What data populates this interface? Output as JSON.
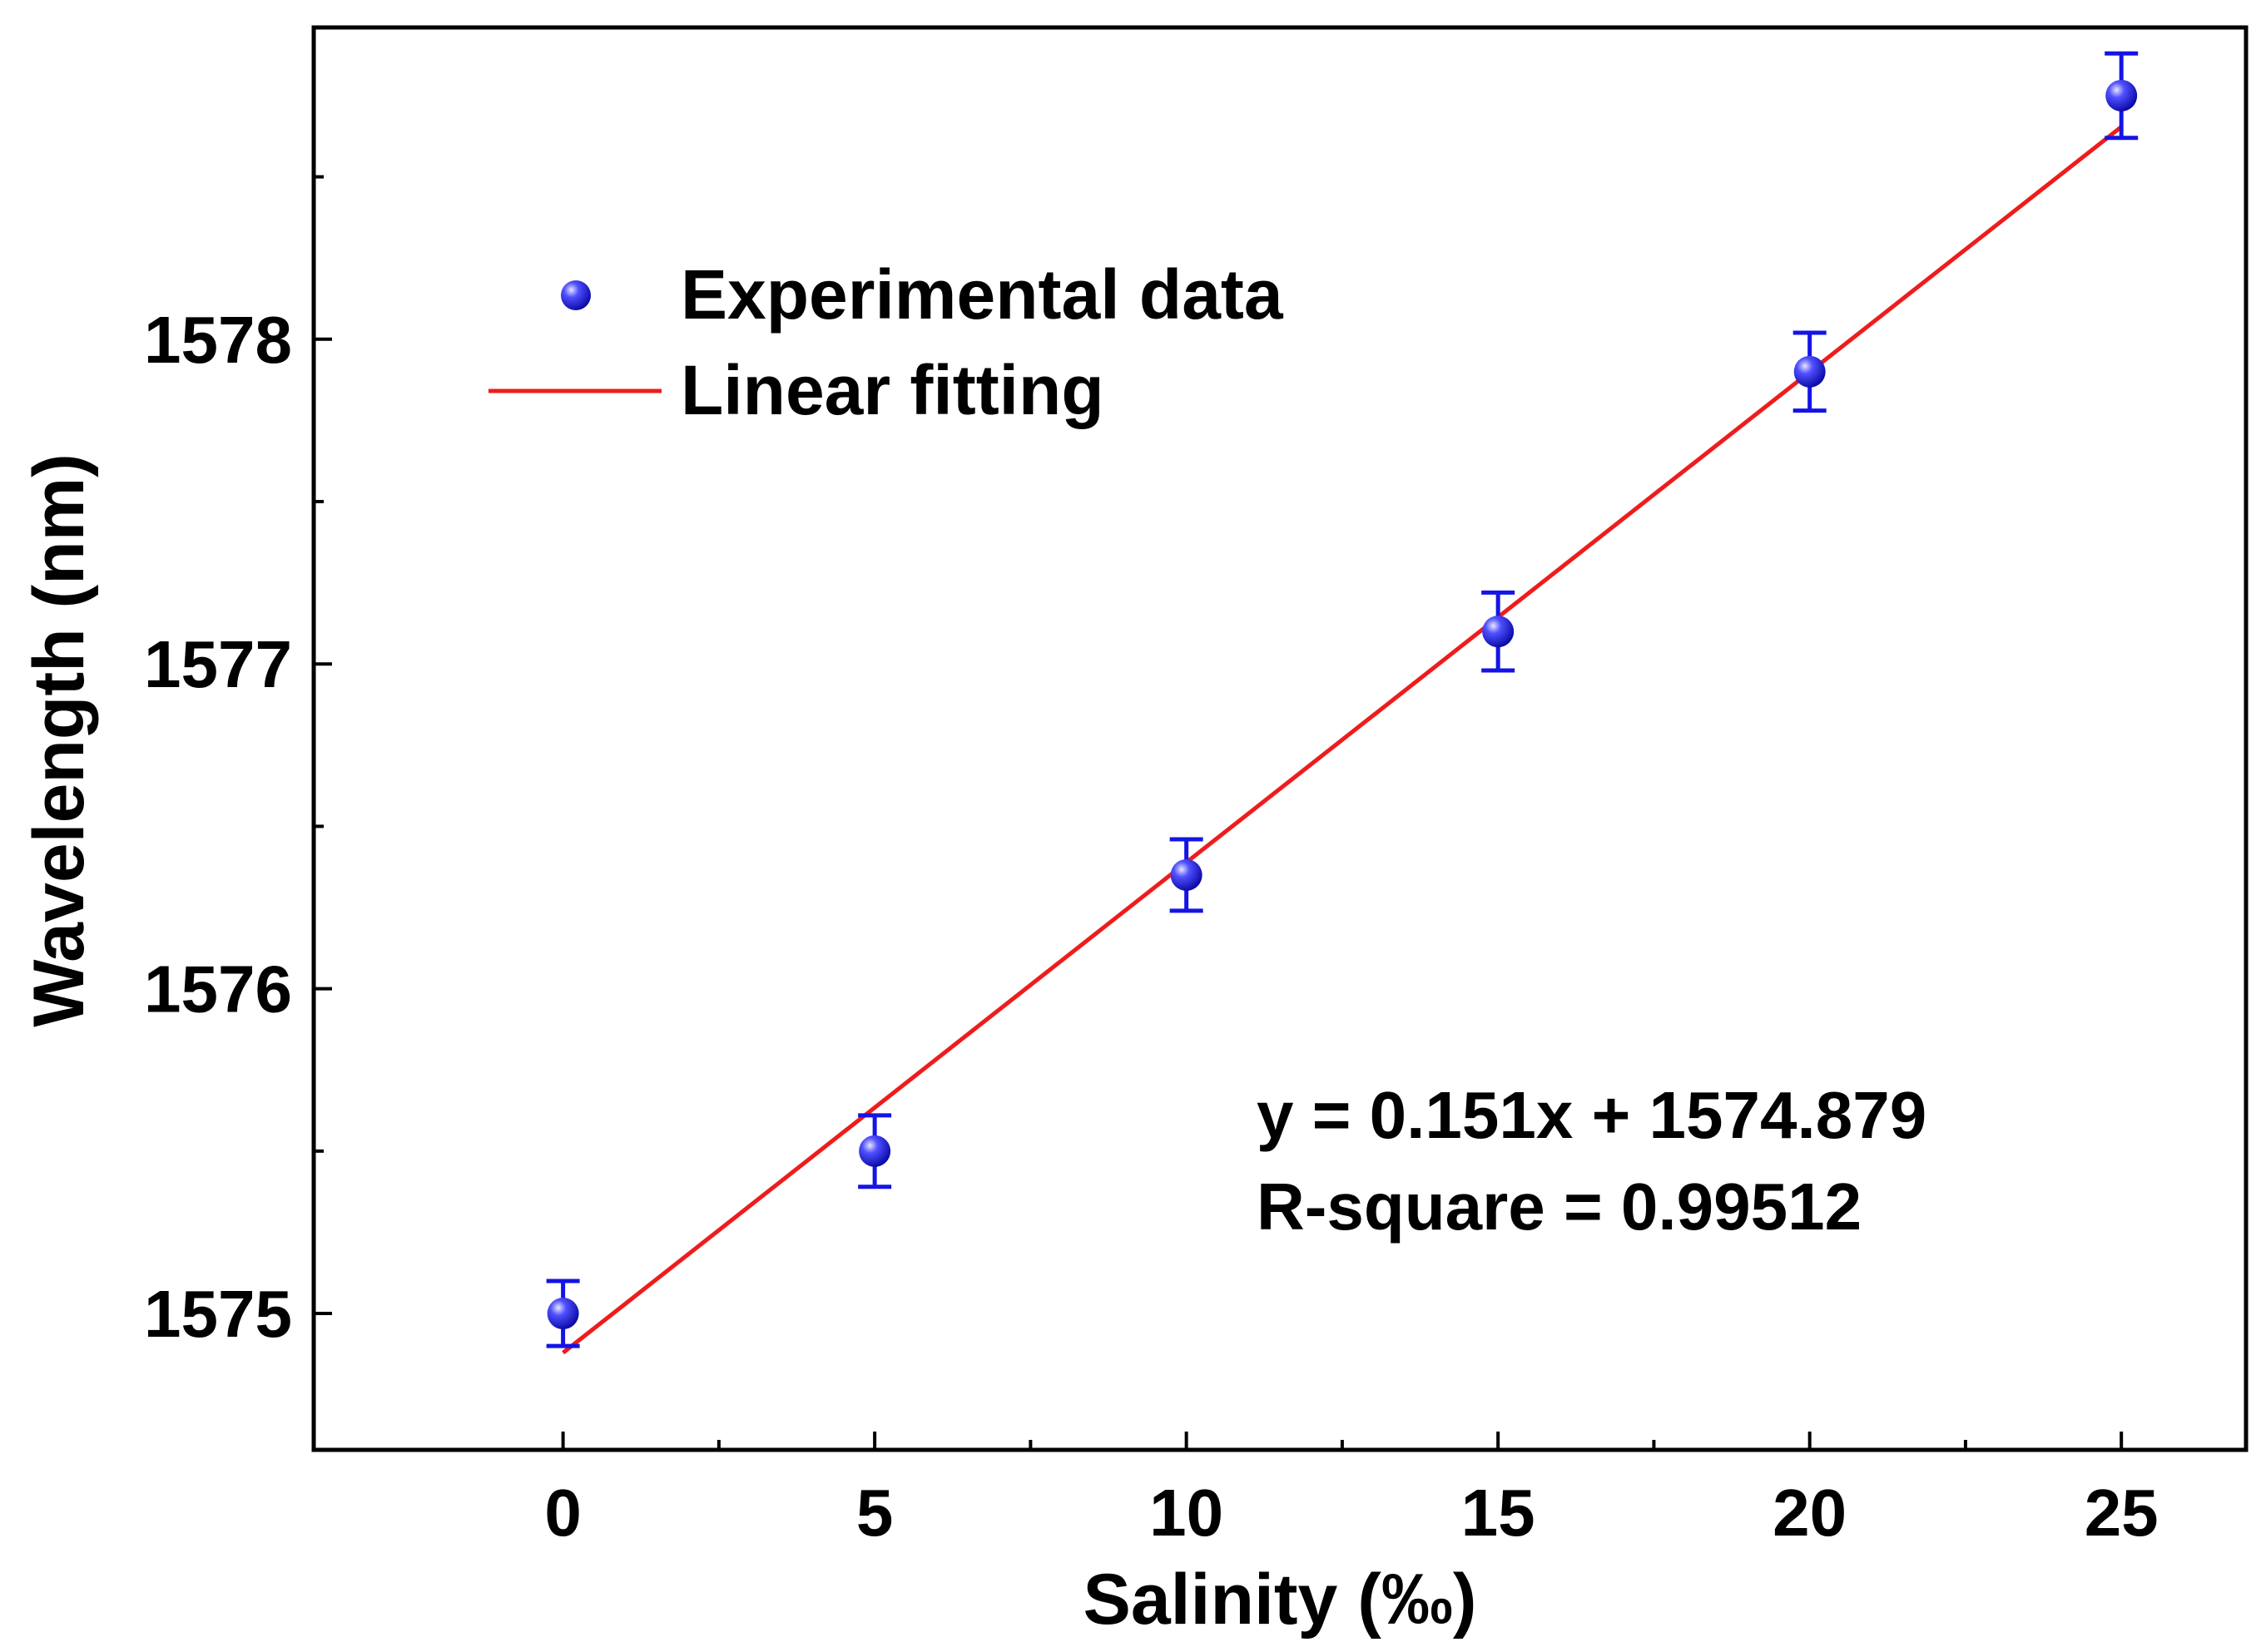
{
  "chart_data": {
    "type": "scatter",
    "title": "",
    "xlabel": "Salinity (‰)",
    "ylabel": "Wavelength (nm)",
    "xlim": [
      -4,
      27
    ],
    "ylim": [
      1574.58,
      1578.96
    ],
    "x_ticks": [
      0,
      5,
      10,
      15,
      20,
      25
    ],
    "x_tick_labels": [
      "0",
      "5",
      "10",
      "15",
      "20",
      "25"
    ],
    "x_minor_ticks": [
      2.5,
      7.5,
      12.5,
      17.5,
      22.5
    ],
    "y_ticks": [
      1575,
      1576,
      1577,
      1578
    ],
    "y_tick_labels": [
      "1575",
      "1576",
      "1577",
      "1578"
    ],
    "y_minor_ticks": [
      1575.5,
      1576.5,
      1577.5,
      1578.5
    ],
    "grid": false,
    "legend_position": "top-left",
    "series": [
      {
        "name": "Experimental data",
        "kind": "points-with-error-bars",
        "color": "#1414e6",
        "x": [
          0,
          5,
          10,
          15,
          20,
          25
        ],
        "y": [
          1575.0,
          1575.5,
          1576.35,
          1577.1,
          1577.9,
          1578.75
        ],
        "error": [
          0.1,
          0.11,
          0.11,
          0.12,
          0.12,
          0.13
        ]
      },
      {
        "name": "Linear fitting",
        "kind": "line",
        "color": "#ee1c1c",
        "slope": 0.151,
        "intercept": 1574.879,
        "x_range": [
          0,
          25
        ]
      }
    ],
    "annotations": {
      "equation": "y = 0.151x + 1574.879",
      "r_square": "R-square = 0.99512"
    }
  }
}
